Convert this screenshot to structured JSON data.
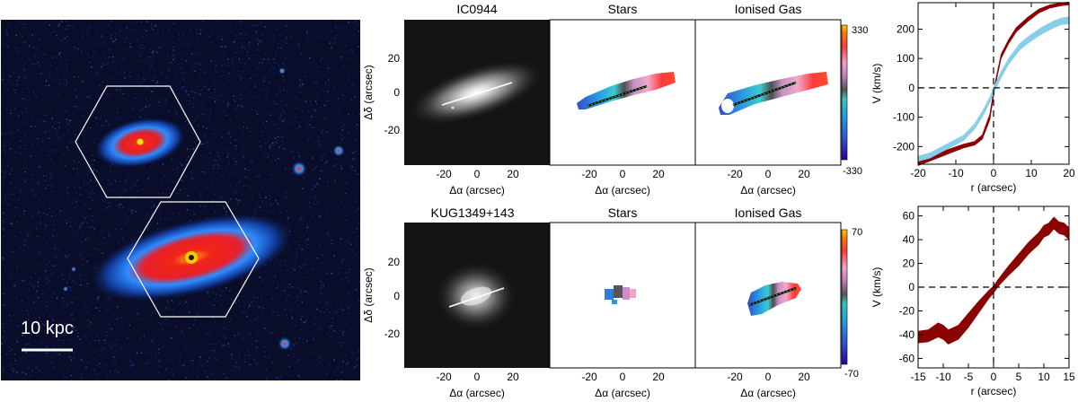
{
  "image_panel": {
    "scale_bar_label": "10 kpc"
  },
  "rows": [
    {
      "galaxy": "IC0944",
      "col_titles": [
        "IC0944",
        "Stars",
        "Ionised Gas"
      ],
      "colorbar": {
        "max_label": "330",
        "min_label": "-330"
      },
      "y_axis_label": "Δδ (arcsec)",
      "x_axis_label": "Δα  (arcsec)",
      "y_ticks": [
        "20",
        "0",
        "-20"
      ],
      "x_ticks": [
        "-20",
        "0",
        "20"
      ]
    },
    {
      "galaxy": "KUG1349+143",
      "col_titles": [
        "KUG1349+143",
        "Stars",
        "Ionised Gas"
      ],
      "colorbar": {
        "max_label": "70",
        "min_label": "-70"
      },
      "y_axis_label": "Δδ (arcsec)",
      "x_axis_label": "Δα  (arcsec)",
      "y_ticks": [
        "20",
        "0",
        "-20"
      ],
      "x_ticks": [
        "-20",
        "0",
        "20"
      ]
    }
  ],
  "colors": {
    "image_background": "#0a0d2a",
    "stars_curve": "#8b0000",
    "gas_curve": "#87ceeb",
    "hexagon": "#ffffff"
  },
  "chart_data": [
    {
      "type": "area",
      "xlabel": "r (arcsec)",
      "ylabel": "V (km/s)",
      "xlim": [
        -20,
        20
      ],
      "ylim": [
        -260,
        290
      ],
      "x_ticks": [
        -20,
        -10,
        0,
        10,
        20
      ],
      "y_ticks": [
        -200,
        -100,
        0,
        100,
        200
      ],
      "series": [
        {
          "color": "#8b0000",
          "x": [
            -20,
            -17,
            -14,
            -11,
            -8,
            -5,
            -3,
            -1,
            0,
            1,
            2,
            4,
            6,
            9,
            12,
            15,
            18,
            20
          ],
          "lower": [
            -265,
            -250,
            -235,
            -220,
            -205,
            -195,
            -175,
            -110,
            -30,
            40,
            100,
            150,
            190,
            225,
            255,
            272,
            280,
            283
          ],
          "upper": [
            -245,
            -232,
            -218,
            -205,
            -192,
            -182,
            -160,
            -90,
            -10,
            55,
            115,
            165,
            205,
            240,
            268,
            283,
            290,
            292
          ]
        },
        {
          "color": "#87ceeb",
          "x": [
            -20,
            -17,
            -14,
            -11,
            -8,
            -5,
            -3,
            -1,
            0,
            2,
            4,
            7,
            10,
            13,
            16,
            18,
            20
          ],
          "lower": [
            -250,
            -240,
            -220,
            -200,
            -180,
            -140,
            -100,
            -50,
            -20,
            35,
            80,
            130,
            160,
            185,
            205,
            215,
            218
          ],
          "upper": [
            -232,
            -222,
            -202,
            -182,
            -162,
            -122,
            -80,
            -32,
            0,
            55,
            100,
            152,
            182,
            208,
            228,
            238,
            242
          ]
        }
      ]
    },
    {
      "type": "area",
      "xlabel": "r (arcsec)",
      "ylabel": "V (km/s)",
      "xlim": [
        -15,
        15
      ],
      "ylim": [
        -68,
        68
      ],
      "x_ticks": [
        -15,
        -10,
        -5,
        0,
        5,
        10,
        15
      ],
      "y_ticks": [
        -60,
        -40,
        -20,
        0,
        20,
        40,
        60
      ],
      "series": [
        {
          "color": "#8b0000",
          "x": [
            -15,
            -13,
            -11,
            -10,
            -9,
            -7,
            -5,
            -3,
            -1,
            0,
            1,
            3,
            5,
            7,
            9,
            10,
            11,
            12,
            13,
            14,
            15
          ],
          "lower": [
            -47,
            -46,
            -42,
            -44,
            -48,
            -44,
            -34,
            -22,
            -10,
            -5,
            1,
            10,
            18,
            28,
            36,
            42,
            44,
            49,
            45,
            44,
            40
          ],
          "upper": [
            -37,
            -36,
            -30,
            -32,
            -36,
            -32,
            -22,
            -12,
            -3,
            1,
            7,
            18,
            28,
            38,
            46,
            52,
            54,
            59,
            55,
            54,
            50
          ]
        }
      ]
    }
  ]
}
